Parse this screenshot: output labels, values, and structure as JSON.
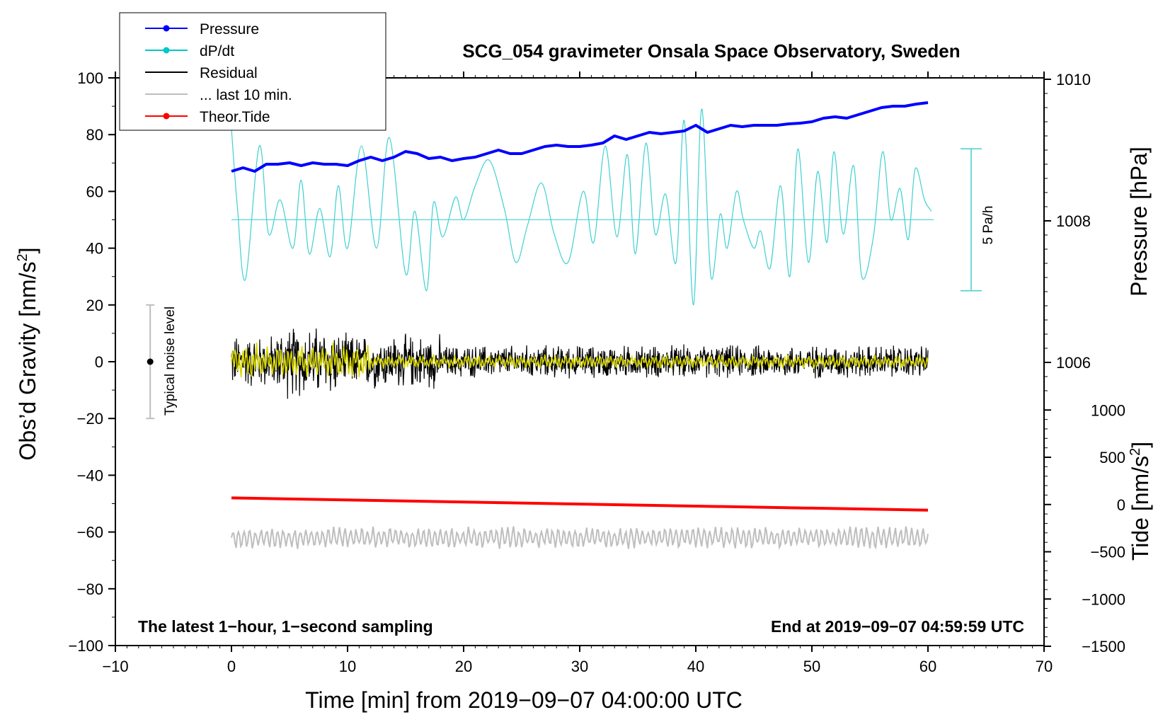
{
  "chart_data": {
    "type": "line",
    "title": "SCG_054 gravimeter Onsala Space Observatory, Sweden",
    "xlabel": "Time [min] from 2019−09−07 04:00:00 UTC",
    "ylabel_left": "Obs’d Gravity [nm/s",
    "ylabel_left_sup": "2",
    "ylabel_left_end": "]",
    "ylabel_right_pressure": "Pressure [hPa]",
    "ylabel_right_tide": "Tide [nm/s",
    "ylabel_right_tide_sup": "2",
    "ylabel_right_tide_end": "]",
    "xlim": [
      -10,
      70
    ],
    "ylim": [
      -100,
      100
    ],
    "pressure_lim": [
      1006,
      1010
    ],
    "tide_lim": [
      -1500,
      1000
    ],
    "x_ticks": [
      -10,
      0,
      10,
      20,
      30,
      40,
      50,
      60,
      70
    ],
    "x_tick_labels": [
      "−10",
      "0",
      "10",
      "20",
      "30",
      "40",
      "50",
      "60",
      "70"
    ],
    "y_ticks": [
      -100,
      -80,
      -60,
      -40,
      -20,
      0,
      20,
      40,
      60,
      80,
      100
    ],
    "y_tick_labels": [
      "−100",
      "−80",
      "−60",
      "−40",
      "−20",
      "0",
      "20",
      "40",
      "60",
      "80",
      "100"
    ],
    "pressure_ticks": [
      1006,
      1008,
      1010
    ],
    "pressure_tick_labels": [
      "1006",
      "1008",
      "1010"
    ],
    "tide_ticks": [
      -1500,
      -1000,
      -500,
      0,
      500,
      1000
    ],
    "tide_tick_labels": [
      "−1500",
      "−1000",
      "−500",
      "0",
      "500",
      "1000"
    ],
    "legend": [
      {
        "label": "Pressure",
        "color": "#0000ff",
        "marker": true
      },
      {
        "label": "dP/dt",
        "color": "#00c8c8",
        "marker": true
      },
      {
        "label": "Residual",
        "color": "#000000",
        "marker": false
      },
      {
        "label": "... last 10 min.",
        "color": "#bebebe",
        "marker": false
      },
      {
        "label": "Theor.Tide",
        "color": "#ff0000",
        "marker": true
      }
    ],
    "annotations": {
      "bottom_left": "The latest 1−hour, 1−second sampling",
      "bottom_right": "End at 2019−09−07 04:59:59 UTC",
      "noise_label": "Typical noise level",
      "scale_bar_label": "5 Pa/h"
    },
    "noise_bar": {
      "x": -7,
      "y_center": 0,
      "y_range": [
        -20,
        20
      ]
    },
    "dpdt_baseline_y": 50,
    "dpdt_scale_bar_y": [
      25,
      75
    ],
    "series": [
      {
        "name": "Pressure",
        "color": "#0000ff",
        "axis": "pressure_hPa",
        "x": [
          0,
          1,
          2,
          3,
          4,
          5,
          6,
          7,
          8,
          9,
          10,
          11,
          12,
          13,
          14,
          15,
          16,
          17,
          18,
          19,
          20,
          21,
          22,
          23,
          24,
          25,
          26,
          27,
          28,
          29,
          30,
          31,
          32,
          33,
          34,
          35,
          36,
          37,
          38,
          39,
          40,
          41,
          42,
          43,
          44,
          45,
          46,
          47,
          48,
          49,
          50,
          51,
          52,
          53,
          54,
          55,
          56,
          57,
          58,
          59,
          60
        ],
        "values": [
          1008.7,
          1008.75,
          1008.7,
          1008.8,
          1008.8,
          1008.82,
          1008.78,
          1008.82,
          1008.8,
          1008.8,
          1008.78,
          1008.85,
          1008.9,
          1008.85,
          1008.9,
          1008.98,
          1008.95,
          1008.88,
          1008.9,
          1008.85,
          1008.88,
          1008.9,
          1008.95,
          1009.0,
          1008.95,
          1008.95,
          1009.0,
          1009.05,
          1009.07,
          1009.05,
          1009.05,
          1009.07,
          1009.1,
          1009.2,
          1009.15,
          1009.2,
          1009.25,
          1009.23,
          1009.25,
          1009.27,
          1009.35,
          1009.25,
          1009.3,
          1009.35,
          1009.33,
          1009.35,
          1009.35,
          1009.35,
          1009.37,
          1009.38,
          1009.4,
          1009.45,
          1009.47,
          1009.45,
          1009.5,
          1009.55,
          1009.6,
          1009.62,
          1009.62,
          1009.65,
          1009.67
        ]
      },
      {
        "name": "dP/dt",
        "color": "#40d0d0",
        "axis": "gravity",
        "x": [
          0,
          0.5,
          1.2,
          2.4,
          3.2,
          4.2,
          5.3,
          6.0,
          6.7,
          7.6,
          8.5,
          9.2,
          10.0,
          11.2,
          12.5,
          13.6,
          15.0,
          15.8,
          16.8,
          17.4,
          18.2,
          19.3,
          20.0,
          21.0,
          22.2,
          23.5,
          24.5,
          25.5,
          26.7,
          27.8,
          29.0,
          30.3,
          31.2,
          32.2,
          33.2,
          34.1,
          34.8,
          35.7,
          36.5,
          37.4,
          38.3,
          39.0,
          39.8,
          40.5,
          41.3,
          42.1,
          42.7,
          43.5,
          44.1,
          45.0,
          45.6,
          46.4,
          47.3,
          48.1,
          48.8,
          49.7,
          50.5,
          51.3,
          51.9,
          52.7,
          53.6,
          54.3,
          55.3,
          56.1,
          56.8,
          57.6,
          58.3,
          58.9,
          59.7,
          60.3
        ],
        "values": [
          82,
          55,
          29,
          76,
          45,
          57,
          40,
          64,
          38,
          54,
          37,
          62,
          40,
          76,
          40,
          79,
          31,
          53,
          25,
          56,
          44,
          58,
          50,
          62,
          71,
          54,
          35,
          48,
          63,
          45,
          35,
          60,
          42,
          76,
          44,
          73,
          38,
          77,
          45,
          59,
          35,
          85,
          20,
          89,
          30,
          52,
          40,
          60,
          50,
          40,
          46,
          33,
          62,
          30,
          75,
          35,
          67,
          42,
          74,
          45,
          69,
          30,
          44,
          74,
          50,
          61,
          43,
          68,
          57,
          53
        ]
      },
      {
        "name": "Theor.Tide",
        "color": "#ff0000",
        "axis": "tide",
        "x": [
          0,
          60
        ],
        "values": [
          70,
          -60
        ]
      }
    ],
    "residual": {
      "x_range": [
        0,
        60
      ],
      "center": 0,
      "approx_range": [
        -15,
        16
      ],
      "color": "#000000",
      "lowpass_color": "#d8d800"
    },
    "last_10_min": {
      "x_range": [
        0,
        60
      ],
      "center": -62,
      "approx_range": [
        -69,
        -55
      ],
      "color": "#bebebe"
    }
  }
}
